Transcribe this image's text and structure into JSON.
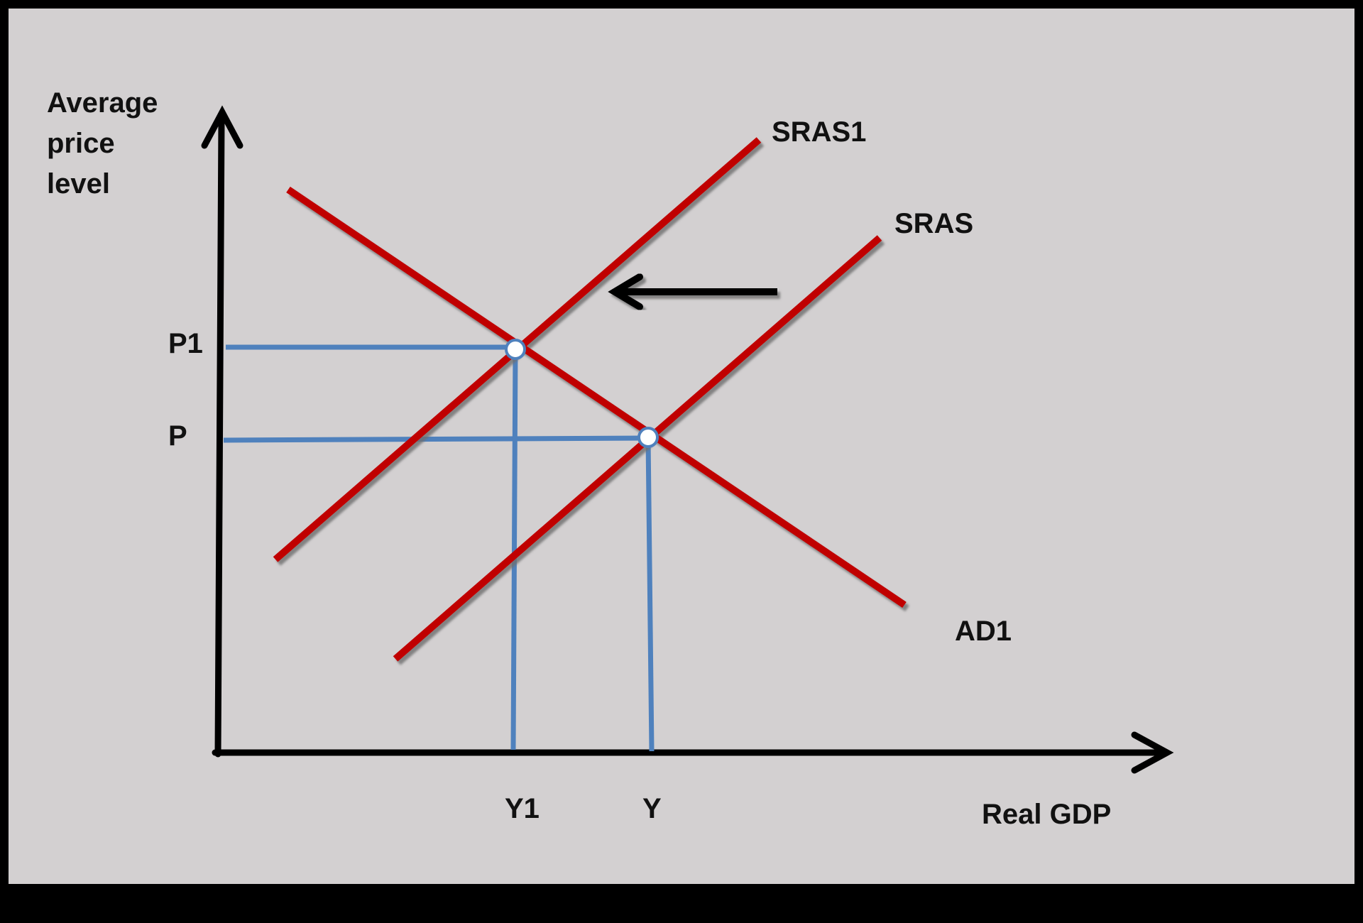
{
  "diagram": {
    "y_axis_label": [
      "Average",
      "price",
      "level"
    ],
    "x_axis_label": "Real GDP",
    "price_labels": {
      "initial": "P",
      "new": "P1"
    },
    "output_labels": {
      "initial": "Y",
      "new": "Y1"
    },
    "curves": {
      "supply_initial": "SRAS",
      "supply_new": "SRAS1",
      "demand": "AD1"
    },
    "shift_direction": "left",
    "colors": {
      "background": "#d3d0d1",
      "frame": "#000000",
      "curve": "#c00000",
      "guide": "#4f81bd",
      "axis": "#000000"
    }
  }
}
